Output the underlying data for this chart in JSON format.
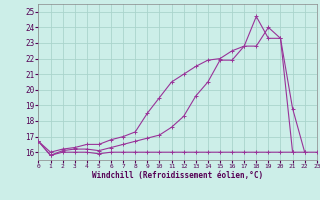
{
  "xlabel": "Windchill (Refroidissement éolien,°C)",
  "xlim": [
    0,
    23
  ],
  "ylim": [
    15.5,
    25.5
  ],
  "yticks": [
    16,
    17,
    18,
    19,
    20,
    21,
    22,
    23,
    24,
    25
  ],
  "xticks": [
    0,
    1,
    2,
    3,
    4,
    5,
    6,
    7,
    8,
    9,
    10,
    11,
    12,
    13,
    14,
    15,
    16,
    17,
    18,
    19,
    20,
    21,
    22,
    23
  ],
  "background_color": "#cceee8",
  "grid_color": "#aad4cc",
  "line_color": "#993399",
  "line1_x": [
    0,
    1,
    2,
    3,
    4,
    5,
    6,
    7,
    8,
    9,
    10,
    11,
    12,
    13,
    14,
    15,
    16,
    17,
    18,
    19,
    20,
    21,
    22,
    23
  ],
  "line1_y": [
    16.7,
    15.8,
    16.0,
    16.0,
    16.0,
    15.9,
    16.0,
    16.0,
    16.0,
    16.0,
    16.0,
    16.0,
    16.0,
    16.0,
    16.0,
    16.0,
    16.0,
    16.0,
    16.0,
    16.0,
    16.0,
    16.0,
    16.0,
    16.0
  ],
  "line2_x": [
    0,
    1,
    2,
    3,
    4,
    5,
    6,
    7,
    8,
    9,
    10,
    11,
    12,
    13,
    14,
    15,
    16,
    17,
    18,
    19,
    20,
    21
  ],
  "line2_y": [
    16.7,
    15.8,
    16.1,
    16.2,
    16.2,
    16.1,
    16.3,
    16.5,
    16.7,
    16.9,
    17.1,
    17.6,
    18.3,
    19.6,
    20.5,
    21.9,
    21.9,
    22.8,
    22.8,
    24.0,
    23.3,
    16.0
  ],
  "line3_x": [
    0,
    1,
    2,
    3,
    4,
    5,
    6,
    7,
    8,
    9,
    10,
    11,
    12,
    13,
    14,
    15,
    16,
    17,
    18,
    19,
    20,
    21,
    22
  ],
  "line3_y": [
    16.7,
    16.0,
    16.2,
    16.3,
    16.5,
    16.5,
    16.8,
    17.0,
    17.3,
    18.5,
    19.5,
    20.5,
    21.0,
    21.5,
    21.9,
    22.0,
    22.5,
    22.8,
    24.7,
    23.3,
    23.3,
    18.8,
    16.0
  ]
}
